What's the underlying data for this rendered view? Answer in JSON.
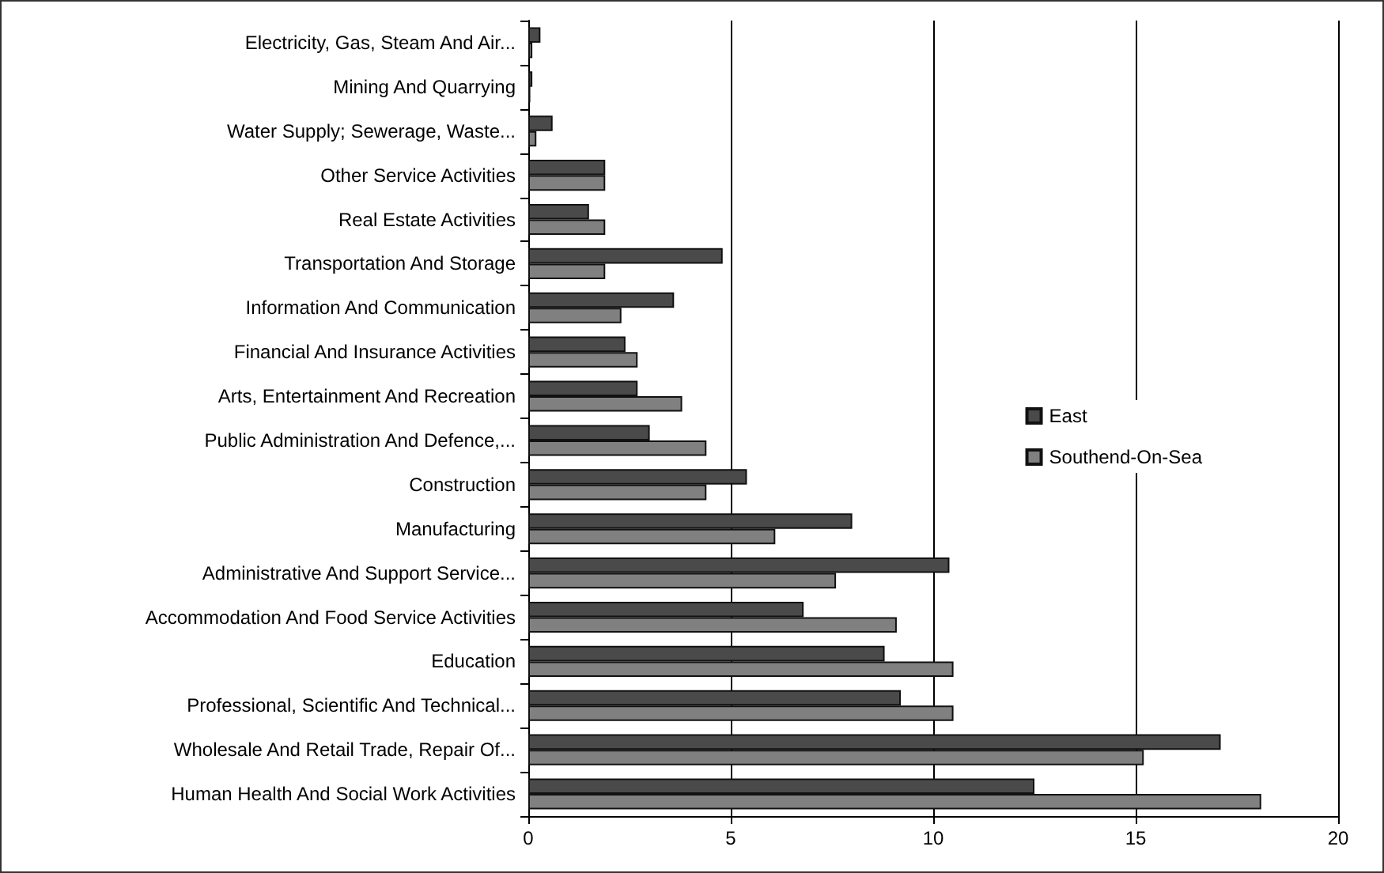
{
  "chart_data": {
    "type": "bar",
    "orientation": "horizontal",
    "categories": [
      "Electricity, Gas, Steam And Air...",
      "Mining And Quarrying",
      "Water Supply; Sewerage, Waste...",
      "Other Service Activities",
      "Real Estate Activities",
      "Transportation And Storage",
      "Information And Communication",
      "Financial And Insurance Activities",
      "Arts, Entertainment And Recreation",
      "Public Administration And Defence,...",
      "Construction",
      "Manufacturing",
      "Administrative And Support Service...",
      "Accommodation And Food Service Activities",
      "Education",
      "Professional, Scientific And Technical...",
      "Wholesale And Retail Trade, Repair Of...",
      "Human Health And Social Work Activities"
    ],
    "series": [
      {
        "name": "East",
        "color": "#4a4a4a",
        "values": [
          0.3,
          0.1,
          0.6,
          1.9,
          1.5,
          4.8,
          3.6,
          2.4,
          2.7,
          3.0,
          5.4,
          8.0,
          10.4,
          6.8,
          8.8,
          9.2,
          17.1,
          12.5
        ]
      },
      {
        "name": "Southend-On-Sea",
        "color": "#808080",
        "values": [
          0.1,
          0.05,
          0.2,
          1.9,
          1.9,
          1.9,
          2.3,
          2.7,
          3.8,
          4.4,
          4.4,
          6.1,
          7.6,
          9.1,
          10.5,
          10.5,
          15.2,
          18.1
        ]
      }
    ],
    "xlim": [
      0,
      20
    ],
    "xticks": [
      0,
      5,
      10,
      15,
      20
    ],
    "grid": "x",
    "legend": "right"
  }
}
